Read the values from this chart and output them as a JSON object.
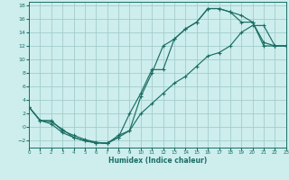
{
  "xlabel": "Humidex (Indice chaleur)",
  "bg_color": "#cdeeed",
  "grid_color": "#a4cccc",
  "line_color": "#1a6e64",
  "xlim": [
    0,
    23
  ],
  "ylim": [
    -3,
    18.5
  ],
  "xticks": [
    0,
    1,
    2,
    3,
    4,
    5,
    6,
    7,
    8,
    9,
    10,
    11,
    12,
    13,
    14,
    15,
    16,
    17,
    18,
    19,
    20,
    21,
    22,
    23
  ],
  "yticks": [
    -2,
    0,
    2,
    4,
    6,
    8,
    10,
    12,
    14,
    16,
    18
  ],
  "curve1_x": [
    0,
    1,
    2,
    3,
    4,
    5,
    6,
    7,
    8,
    9,
    10,
    11,
    12,
    13,
    14,
    15,
    16,
    17,
    18,
    19,
    20,
    21,
    22,
    23
  ],
  "curve1_y": [
    3.0,
    1.0,
    1.0,
    -0.5,
    -1.2,
    -1.8,
    -2.2,
    -2.4,
    -1.2,
    -0.5,
    4.5,
    8.0,
    12.0,
    13.0,
    14.5,
    15.5,
    17.5,
    17.5,
    17.0,
    16.5,
    15.5,
    12.0,
    12.0,
    12.0
  ],
  "curve2_x": [
    0,
    1,
    2,
    3,
    4,
    5,
    6,
    7,
    8,
    9,
    10,
    11,
    12,
    13,
    14,
    15,
    16,
    17,
    18,
    19,
    20,
    21,
    22,
    23
  ],
  "curve2_y": [
    3.0,
    1.0,
    0.8,
    -0.3,
    -1.5,
    -2.0,
    -2.3,
    -2.4,
    -1.5,
    2.0,
    5.0,
    8.5,
    8.5,
    13.0,
    14.5,
    15.5,
    17.5,
    17.5,
    17.0,
    15.5,
    15.5,
    12.5,
    12.0,
    12.0
  ],
  "curve3_x": [
    0,
    1,
    2,
    3,
    4,
    5,
    6,
    7,
    8,
    9,
    10,
    11,
    12,
    13,
    14,
    15,
    16,
    17,
    18,
    19,
    20,
    21,
    22,
    23
  ],
  "curve3_y": [
    3.0,
    1.0,
    0.5,
    -0.8,
    -1.5,
    -2.0,
    -2.3,
    -2.3,
    -1.5,
    -0.5,
    2.0,
    3.5,
    5.0,
    6.5,
    7.5,
    9.0,
    10.5,
    11.0,
    12.0,
    14.0,
    15.0,
    15.0,
    12.0,
    12.0
  ]
}
